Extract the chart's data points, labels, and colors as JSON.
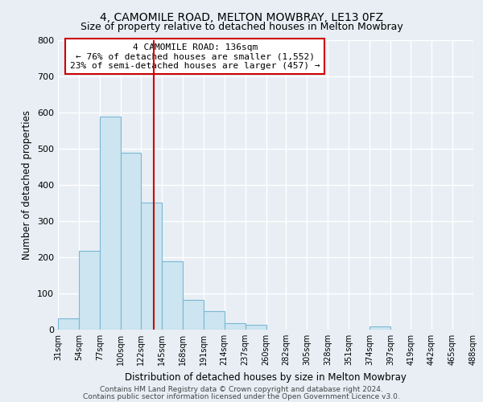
{
  "title1": "4, CAMOMILE ROAD, MELTON MOWBRAY, LE13 0FZ",
  "title2": "Size of property relative to detached houses in Melton Mowbray",
  "xlabel": "Distribution of detached houses by size in Melton Mowbray",
  "ylabel": "Number of detached properties",
  "bin_edges": [
    31,
    54,
    77,
    100,
    122,
    145,
    168,
    191,
    214,
    237,
    260,
    282,
    305,
    328,
    351,
    374,
    397,
    419,
    442,
    465,
    488
  ],
  "bar_heights": [
    32,
    218,
    588,
    488,
    352,
    188,
    83,
    52,
    18,
    13,
    0,
    0,
    0,
    0,
    0,
    8,
    0,
    0,
    0,
    0
  ],
  "bar_color": "#cce5f0",
  "bar_edgecolor": "#7ab8d4",
  "property_size": 136,
  "vline_color": "#cc0000",
  "annotation_line1": "4 CAMOMILE ROAD: 136sqm",
  "annotation_line2": "← 76% of detached houses are smaller (1,552)",
  "annotation_line3": "23% of semi-detached houses are larger (457) →",
  "annotation_box_edgecolor": "#cc0000",
  "annotation_box_facecolor": "#ffffff",
  "ylim": [
    0,
    800
  ],
  "yticks": [
    0,
    100,
    200,
    300,
    400,
    500,
    600,
    700,
    800
  ],
  "tick_labels": [
    "31sqm",
    "54sqm",
    "77sqm",
    "100sqm",
    "122sqm",
    "145sqm",
    "168sqm",
    "191sqm",
    "214sqm",
    "237sqm",
    "260sqm",
    "282sqm",
    "305sqm",
    "328sqm",
    "351sqm",
    "374sqm",
    "397sqm",
    "419sqm",
    "442sqm",
    "465sqm",
    "488sqm"
  ],
  "footer1": "Contains HM Land Registry data © Crown copyright and database right 2024.",
  "footer2": "Contains public sector information licensed under the Open Government Licence v3.0.",
  "bg_color": "#e8eef4",
  "plot_bg_color": "#e8eef4",
  "grid_color": "#ffffff",
  "title_fontsize": 10,
  "subtitle_fontsize": 9,
  "annotation_fontsize": 8,
  "footer_fontsize": 6.5
}
